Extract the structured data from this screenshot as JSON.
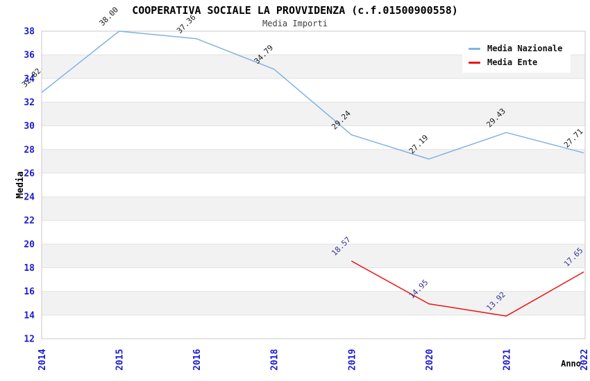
{
  "title": "COOPERATIVA SOCIALE LA PROVVIDENZA (c.f.01500900558)",
  "subtitle": "Media Importi",
  "chart_data": {
    "type": "line",
    "categories": [
      "2014",
      "2015",
      "2016",
      "2018",
      "2019",
      "2020",
      "2021",
      "2022"
    ],
    "series": [
      {
        "name": "Media Nazionale",
        "color": "#7fb2e5",
        "label_color": "#1a1a1a",
        "values": [
          32.82,
          38.0,
          37.36,
          34.79,
          29.24,
          27.19,
          29.43,
          27.71
        ],
        "labels": [
          "32.82",
          "38.00",
          "37.36",
          "34.79",
          "29.24",
          "27.19",
          "29.43",
          "27.71"
        ]
      },
      {
        "name": "Media Ente",
        "color": "#ee1111",
        "label_color": "#333399",
        "values": [
          null,
          null,
          null,
          null,
          18.57,
          14.95,
          13.92,
          17.65
        ],
        "labels": [
          null,
          null,
          null,
          null,
          "18.57",
          "14.95",
          "13.92",
          "17.65"
        ]
      }
    ],
    "xlabel": "Anno",
    "ylabel": "Media",
    "ylim": [
      12,
      38
    ],
    "yticks": [
      12,
      14,
      16,
      18,
      20,
      22,
      24,
      26,
      28,
      30,
      32,
      34,
      36,
      38
    ],
    "grid": true,
    "legend_position": "top-right",
    "styles": {
      "tick_color": "#1a1ad2",
      "band_color": "#f2f2f2",
      "gridline_color": "#e2e2e2",
      "border_color": "#c9c9c9",
      "axis_title_color": "#000000"
    }
  }
}
